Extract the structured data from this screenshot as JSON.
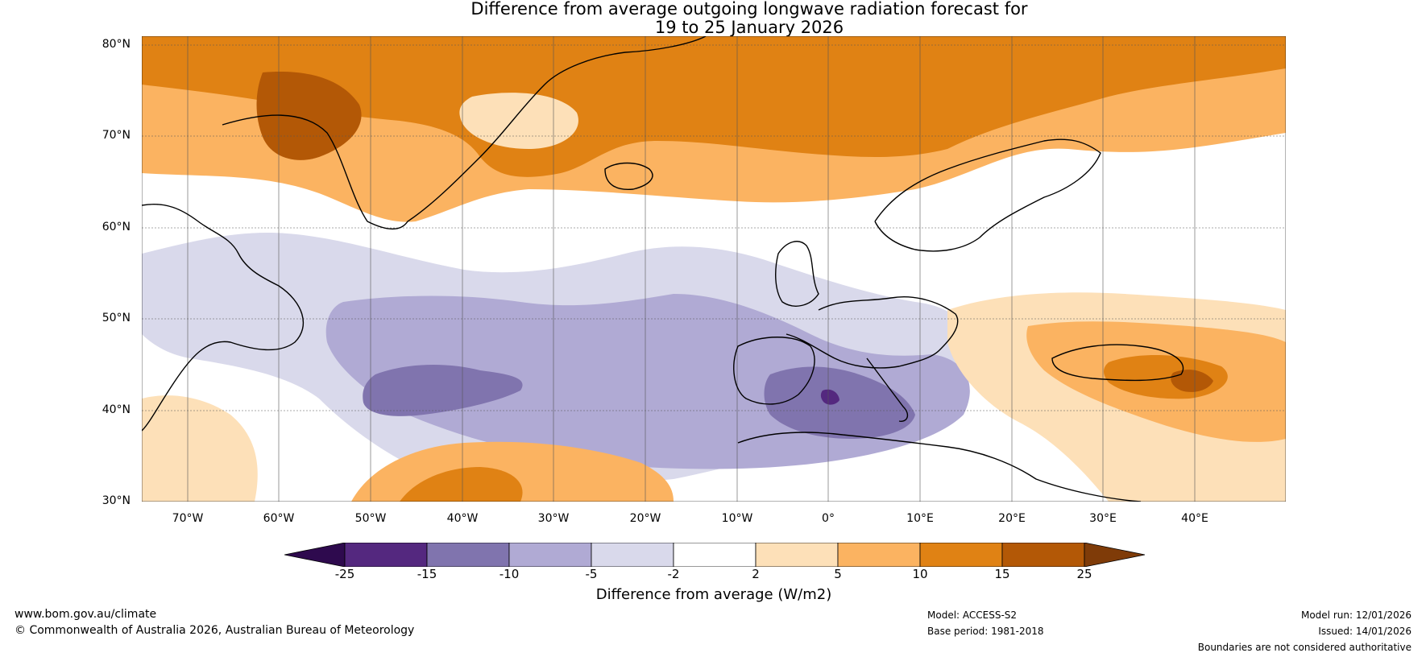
{
  "title": {
    "line1": "Difference from average outgoing longwave radiation forecast for",
    "line2": "19 to 25 January 2026"
  },
  "map": {
    "name": "OLR anomaly map, North Atlantic and Europe",
    "lat_labels": [
      "80°N",
      "70°N",
      "60°N",
      "50°N",
      "40°N",
      "30°N"
    ],
    "lon_labels": [
      "70°W",
      "60°W",
      "50°W",
      "40°W",
      "30°W",
      "20°W",
      "10°W",
      "0°",
      "10°E",
      "20°E",
      "30°E",
      "40°E"
    ]
  },
  "colorbar": {
    "ticks": [
      "-25",
      "-15",
      "-10",
      "-5",
      "-2",
      "2",
      "5",
      "10",
      "15",
      "25"
    ],
    "colors": [
      "#2e0a4e",
      "#54287f",
      "#8074ae",
      "#b0aad4",
      "#d9d9eb",
      "#ffffff",
      "#fde0b8",
      "#fbb361",
      "#e08214",
      "#b35806",
      "#7f3b08"
    ],
    "title": "Difference from average (W/m2)"
  },
  "footer": {
    "website": "www.bom.gov.au/climate",
    "copyright": "© Commonwealth of Australia 2026, Australian Bureau of Meteorology",
    "model": "Model: ACCESS-S2",
    "base_period": "Base period: 1981-2018",
    "model_run": "Model run: 12/01/2026",
    "issued": "Issued: 14/01/2026",
    "disclaimer": "Boundaries are not considered authoritative"
  }
}
